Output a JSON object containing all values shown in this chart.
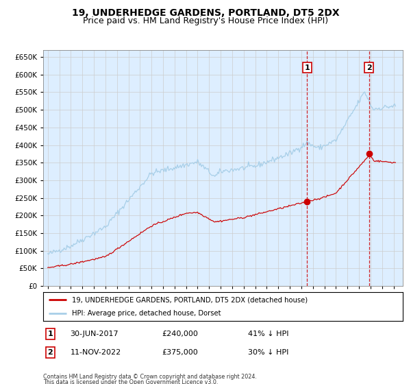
{
  "title": "19, UNDERHEDGE GARDENS, PORTLAND, DT5 2DX",
  "subtitle": "Price paid vs. HM Land Registry's House Price Index (HPI)",
  "ylim": [
    0,
    670000
  ],
  "yticks": [
    0,
    50000,
    100000,
    150000,
    200000,
    250000,
    300000,
    350000,
    400000,
    450000,
    500000,
    550000,
    600000,
    650000
  ],
  "xlim_left": 1994.6,
  "xlim_right": 2025.8,
  "event1_x": 2017.5,
  "event1_y": 240000,
  "event1_label": "1",
  "event1_date": "30-JUN-2017",
  "event1_price": "£240,000",
  "event1_hpi": "41% ↓ HPI",
  "event2_x": 2022.87,
  "event2_y": 375000,
  "event2_label": "2",
  "event2_date": "11-NOV-2022",
  "event2_price": "£375,000",
  "event2_hpi": "30% ↓ HPI",
  "hpi_color": "#a8cfe8",
  "sale_color": "#cc0000",
  "bg_color": "#ddeeff",
  "grid_color": "#cccccc",
  "legend_sale": "19, UNDERHEDGE GARDENS, PORTLAND, DT5 2DX (detached house)",
  "legend_hpi": "HPI: Average price, detached house, Dorset",
  "footnote1": "Contains HM Land Registry data © Crown copyright and database right 2024.",
  "footnote2": "This data is licensed under the Open Government Licence v3.0.",
  "title_fontsize": 10,
  "subtitle_fontsize": 9
}
